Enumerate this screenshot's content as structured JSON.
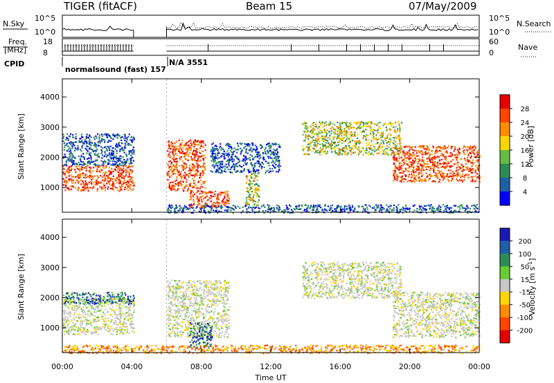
{
  "header": {
    "radar": "TIGER (fitACF)",
    "beam": "Beam 15",
    "date": "07/May/2009"
  },
  "noise_panel": {
    "left_label": "N.Sky",
    "left_ticks": [
      "10^5",
      "10^0"
    ],
    "right_ticks": [
      "10^5",
      "10^0"
    ],
    "right_label": "N.Search",
    "series": [
      {
        "name": "N.Sky",
        "segments": [
          [
            0.0,
            4.1
          ],
          [
            6.0,
            24.0
          ]
        ],
        "level": 0.35,
        "style": "solid"
      },
      {
        "name": "N.Search",
        "segments": [
          [
            6.0,
            24.0
          ]
        ],
        "level": 0.45,
        "style": "dotted"
      }
    ]
  },
  "freq_panel": {
    "left_label_1": "Freq.",
    "left_label_2": "[MHz]",
    "left_ticks": [
      "18",
      "8"
    ],
    "right_ticks": [
      "60",
      "0"
    ],
    "right_label": "Nave",
    "cpid_label": "CPID",
    "cpid_left": "normalsound (fast) 157",
    "cpid_right": "N/A 3551"
  },
  "time_axis": {
    "label": "Time UT",
    "ticks": [
      "00:00",
      "04:00",
      "08:00",
      "12:00",
      "16:00",
      "20:00",
      "00:00"
    ],
    "range_hours": [
      0,
      24
    ]
  },
  "power_colorbar": {
    "label": "Power [dB]",
    "ticks": [
      "28",
      "24",
      "20",
      "16",
      "12",
      "8",
      "4"
    ],
    "colors": [
      "#e60000",
      "#ff4500",
      "#ff8c00",
      "#ffd700",
      "#66bb44",
      "#2e8b57",
      "#1f5fa8",
      "#0000ff"
    ]
  },
  "velocity_colorbar": {
    "label": "Velocity [m s",
    "label_sup": "-1",
    "label_close": "]",
    "ticks": [
      "200",
      "100",
      "50",
      "15",
      "-15",
      "-50",
      "-100",
      "-200"
    ],
    "colors": [
      "#1a1ab4",
      "#1f5fa8",
      "#2e8b57",
      "#66cc33",
      "#c8c8c8",
      "#ffd700",
      "#ff8c00",
      "#ff4500",
      "#e60000"
    ]
  },
  "chart_data": [
    {
      "type": "heatmap",
      "title": "",
      "xlabel": "Time UT",
      "ylabel": "Slant Range [km]",
      "xlim": [
        0,
        24
      ],
      "ylim": [
        180,
        4600
      ],
      "yticks": [
        1000,
        2000,
        3000,
        4000
      ],
      "colorbar": "Power [dB]",
      "data_gap_hours": [
        4.1,
        6.0
      ],
      "echo_regions": [
        {
          "t": [
            0.0,
            4.1
          ],
          "r": [
            900,
            1750
          ],
          "level": "high"
        },
        {
          "t": [
            0.0,
            4.1
          ],
          "r": [
            1750,
            2800
          ],
          "level": "low"
        },
        {
          "t": [
            6.0,
            8.2
          ],
          "r": [
            900,
            2600
          ],
          "level": "high"
        },
        {
          "t": [
            7.3,
            9.6
          ],
          "r": [
            350,
            900
          ],
          "level": "high"
        },
        {
          "t": [
            8.5,
            12.5
          ],
          "r": [
            1500,
            2500
          ],
          "level": "low"
        },
        {
          "t": [
            10.5,
            11.3
          ],
          "r": [
            400,
            1500
          ],
          "level": "mid"
        },
        {
          "t": [
            13.8,
            19.5
          ],
          "r": [
            2100,
            3200
          ],
          "level": "mid"
        },
        {
          "t": [
            19.0,
            24.0
          ],
          "r": [
            1200,
            2400
          ],
          "level": "high"
        },
        {
          "t": [
            6.0,
            24.0
          ],
          "r": [
            180,
            450
          ],
          "level": "low"
        }
      ]
    },
    {
      "type": "heatmap",
      "title": "",
      "xlabel": "Time UT",
      "ylabel": "Slant Range [km]",
      "xlim": [
        0,
        24
      ],
      "ylim": [
        180,
        4600
      ],
      "yticks": [
        1000,
        2000,
        3000,
        4000
      ],
      "colorbar": "Velocity [m s-1]",
      "data_gap_hours": [
        4.1,
        6.0
      ],
      "echo_regions": [
        {
          "t": [
            0.0,
            4.1
          ],
          "r": [
            800,
            2000
          ],
          "velocity": "near zero"
        },
        {
          "t": [
            0.0,
            4.1
          ],
          "r": [
            1800,
            2200
          ],
          "velocity": "positive"
        },
        {
          "t": [
            6.0,
            9.6
          ],
          "r": [
            700,
            2600
          ],
          "velocity": "near zero"
        },
        {
          "t": [
            7.3,
            8.6
          ],
          "r": [
            350,
            1200
          ],
          "velocity": "positive"
        },
        {
          "t": [
            13.8,
            19.5
          ],
          "r": [
            2000,
            3200
          ],
          "velocity": "near zero"
        },
        {
          "t": [
            19.0,
            24.0
          ],
          "r": [
            700,
            2200
          ],
          "velocity": "near zero"
        },
        {
          "t": [
            0.0,
            24.0
          ],
          "r": [
            180,
            450
          ],
          "velocity": "negative"
        }
      ]
    }
  ]
}
